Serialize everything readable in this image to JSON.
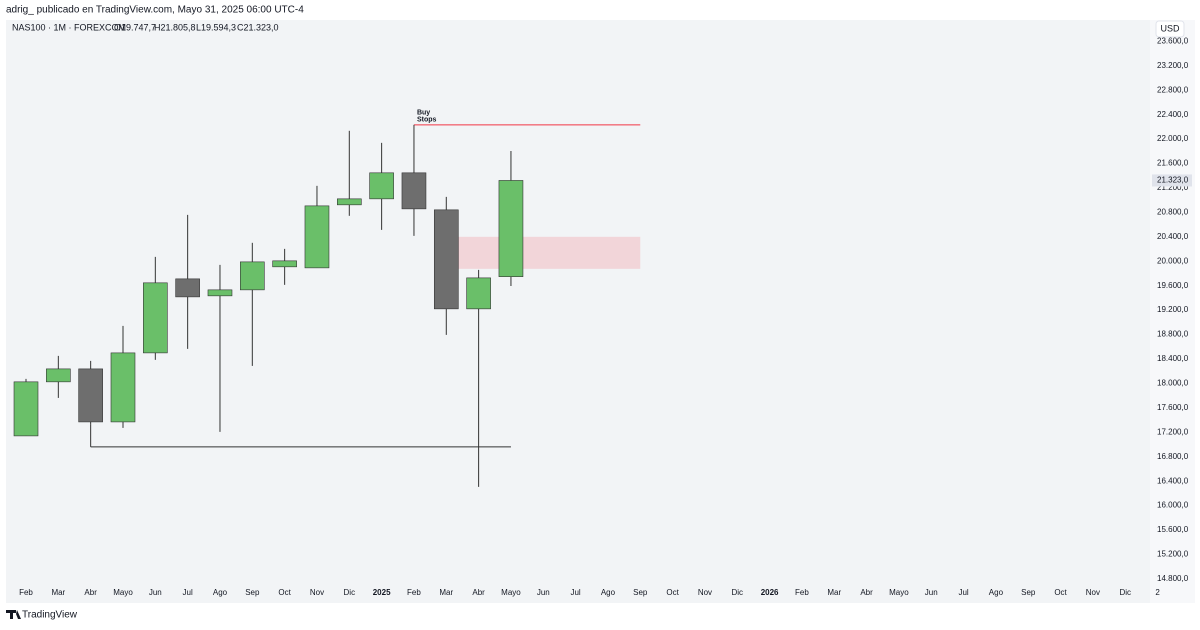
{
  "header": {
    "byline": "adrig_ publicado en TradingView.com, Mayo 31, 2025 06:00 UTC-4",
    "brand": "TradingView"
  },
  "chart_data": {
    "type": "candlestick",
    "symbol": "NAS100 · 1M · FOREXCOM",
    "ohlc_labels": [
      "O19.747,7",
      "H21.805,8",
      "L19.594,3",
      "C21.323,0"
    ],
    "currency": "USD",
    "last_price_label": "21.323,0",
    "categories": [
      "Feb",
      "Mar",
      "Abr",
      "Mayo",
      "Jun",
      "Jul",
      "Ago",
      "Sep",
      "Oct",
      "Nov",
      "Dic",
      "2025",
      "Feb",
      "Mar",
      "Abr",
      "Mayo",
      "Jun",
      "Jul",
      "Ago",
      "Sep",
      "Oct",
      "Nov",
      "Dic",
      "2026",
      "Feb",
      "Mar",
      "Abr",
      "Mayo",
      "Jun",
      "Jul",
      "Ago",
      "Sep",
      "Oct",
      "Nov",
      "Dic",
      "2"
    ],
    "open": [
      17141,
      18026,
      18238,
      17370,
      18500,
      19712,
      19434,
      19532,
      19909,
      19892,
      20924,
      21022,
      21448,
      20842,
      19221,
      19747.7,
      null,
      null,
      null,
      null,
      null,
      null,
      null,
      null,
      null,
      null,
      null,
      null,
      null,
      null,
      null,
      null,
      null,
      null,
      null,
      null
    ],
    "high": [
      18075,
      18451,
      18369,
      18942,
      20072,
      20760,
      19941,
      20302,
      20203,
      21235,
      22136,
      21939,
      22234,
      21055,
      19859,
      21805.8,
      null,
      null,
      null,
      null,
      null,
      null,
      null,
      null,
      null,
      null,
      null,
      null,
      null,
      null,
      null,
      null,
      null,
      null,
      null,
      null
    ],
    "low": [
      17141,
      17763,
      17330,
      17272,
      18386,
      18566,
      17207,
      18287,
      19614,
      19892,
      20744,
      20514,
      20416,
      18795,
      16306,
      19594.3,
      null,
      null,
      null,
      null,
      null,
      null,
      null,
      null,
      null,
      null,
      null,
      null,
      null,
      null,
      null,
      null,
      null,
      null,
      null,
      null
    ],
    "close": [
      18026,
      18238,
      17370,
      18500,
      19647,
      19417,
      19532,
      19990,
      20007,
      20907,
      21022,
      21448,
      20858,
      19221,
      19728,
      21323,
      null,
      null,
      null,
      null,
      null,
      null,
      null,
      null,
      null,
      null,
      null,
      null,
      null,
      null,
      null,
      null,
      null,
      null,
      null,
      null
    ],
    "up_color": "#6abf69",
    "down_color": "#6e6e6e",
    "ylim": [
      14700,
      23950
    ],
    "yticks": [
      {
        "value": 14800,
        "label": "14.800,0"
      },
      {
        "value": 15200,
        "label": "15.200,0"
      },
      {
        "value": 15600,
        "label": "15.600,0"
      },
      {
        "value": 16000,
        "label": "16.000,0"
      },
      {
        "value": 16400,
        "label": "16.400,0"
      },
      {
        "value": 16800,
        "label": "16.800,0"
      },
      {
        "value": 17200,
        "label": "17.200,0"
      },
      {
        "value": 17600,
        "label": "17.600,0"
      },
      {
        "value": 18000,
        "label": "18.000,0"
      },
      {
        "value": 18400,
        "label": "18.400,0"
      },
      {
        "value": 18800,
        "label": "18.800,0"
      },
      {
        "value": 19200,
        "label": "19.200,0"
      },
      {
        "value": 19600,
        "label": "19.600,0"
      },
      {
        "value": 20000,
        "label": "20.000,0"
      },
      {
        "value": 20400,
        "label": "20.400,0"
      },
      {
        "value": 20800,
        "label": "20.800,0"
      },
      {
        "value": 21200,
        "label": "21.200,0"
      },
      {
        "value": 21600,
        "label": "21.600,0"
      },
      {
        "value": 22000,
        "label": "22.000,0"
      },
      {
        "value": 22400,
        "label": "22.400,0"
      },
      {
        "value": 22800,
        "label": "22.800,0"
      },
      {
        "value": 23200,
        "label": "23.200,0"
      },
      {
        "value": 23600,
        "label": "23.600,0"
      }
    ],
    "grid": false,
    "buy_stops": {
      "text": [
        "Buy",
        "Stops"
      ],
      "value": 22234,
      "color": "#f23645"
    },
    "zone": {
      "values": [
        19876,
        20400
      ],
      "color": "#f23645"
    },
    "low_level": {
      "value": 16961,
      "color": "#333333"
    }
  }
}
